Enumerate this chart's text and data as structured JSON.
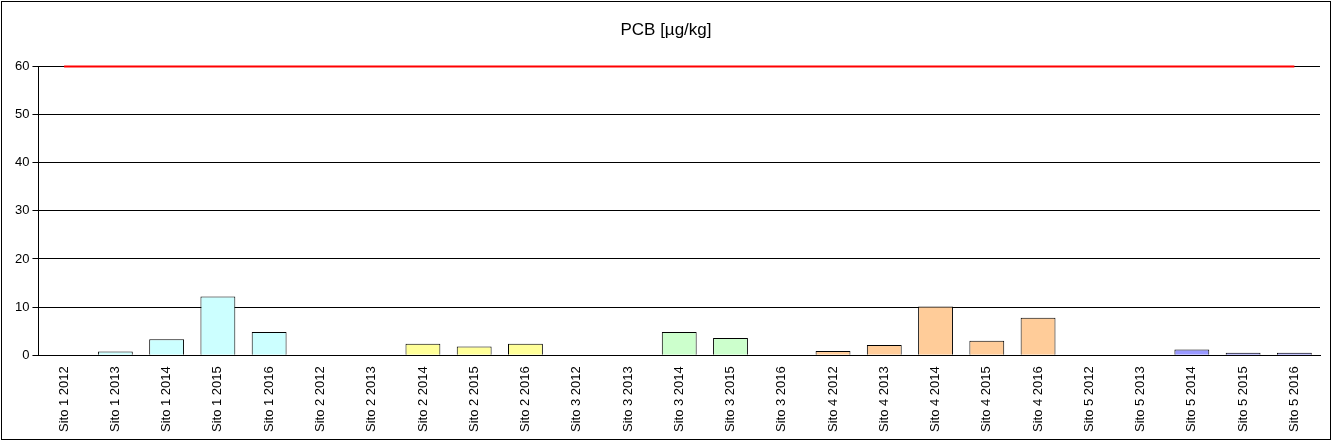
{
  "chart_data": {
    "type": "bar",
    "title": "PCB [µg/kg]",
    "categories": [
      "Sito 1 2012",
      "Sito 1 2013",
      "Sito 1 2014",
      "Sito 1 2015",
      "Sito 1 2016",
      "Sito 2 2012",
      "Sito 2 2013",
      "Sito 2 2014",
      "Sito 2 2015",
      "Sito 2 2016",
      "Sito 3 2012",
      "Sito 3 2013",
      "Sito 3 2014",
      "Sito 3 2015",
      "Sito 3 2016",
      "Sito 4 2012",
      "Sito 4 2013",
      "Sito 4 2014",
      "Sito 4 2015",
      "Sito 4 2016",
      "Sito 5 2012",
      "Sito 5 2013",
      "Sito 5 2014",
      "Sito 5 2015",
      "Sito 5 2016"
    ],
    "values": [
      null,
      0.8,
      3.3,
      12.2,
      4.8,
      null,
      null,
      2.4,
      1.8,
      2.4,
      null,
      null,
      4.8,
      3.6,
      null,
      0.9,
      2.1,
      10.1,
      3.0,
      7.8,
      null,
      null,
      1.2,
      0.5,
      0.5
    ],
    "colors": [
      "#ccffff",
      "#ccffff",
      "#ccffff",
      "#ccffff",
      "#ccffff",
      "#ffff99",
      "#ffff99",
      "#ffff99",
      "#ffff99",
      "#ffff99",
      "#ccffcc",
      "#ccffcc",
      "#ccffcc",
      "#ccffcc",
      "#ccffcc",
      "#ffcc99",
      "#ffcc99",
      "#ffcc99",
      "#ffcc99",
      "#ffcc99",
      "#9999ff",
      "#9999ff",
      "#9999ff",
      "#9999ff",
      "#9999ff"
    ],
    "ylim": [
      0,
      60
    ],
    "yticks": [
      0,
      10,
      20,
      30,
      40,
      50,
      60
    ],
    "grid": "y",
    "legend": false,
    "ref_lines": [
      {
        "axis": "y",
        "value": 60,
        "color": "#ff0000"
      }
    ]
  }
}
